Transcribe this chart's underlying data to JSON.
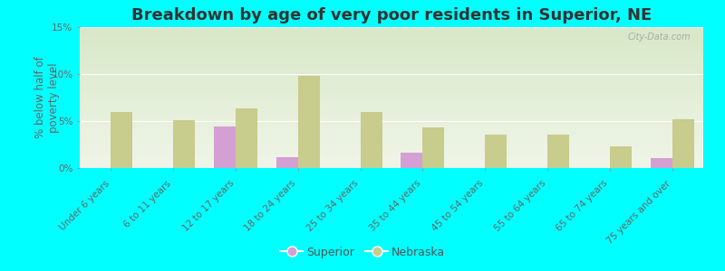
{
  "title": "Breakdown by age of very poor residents in Superior, NE",
  "ylabel": "% below half of\npoverty level",
  "categories": [
    "Under 6 years",
    "6 to 11 years",
    "12 to 17 years",
    "18 to 24 years",
    "25 to 34 years",
    "35 to 44 years",
    "45 to 54 years",
    "55 to 64 years",
    "65 to 74 years",
    "75 years and over"
  ],
  "superior_values": [
    0,
    0,
    4.4,
    1.2,
    0,
    1.6,
    0,
    0,
    0,
    1.1
  ],
  "nebraska_values": [
    6.0,
    5.1,
    6.3,
    9.8,
    6.0,
    4.3,
    3.6,
    3.6,
    2.3,
    5.2
  ],
  "superior_color": "#d4a0d4",
  "nebraska_color": "#c8cc8c",
  "background_color": "#00ffff",
  "grad_top": "#d8e8c8",
  "grad_bottom": "#f0f5e8",
  "ylim": [
    0,
    15
  ],
  "yticks": [
    0,
    5,
    10,
    15
  ],
  "ytick_labels": [
    "0%",
    "5%",
    "10%",
    "15%"
  ],
  "bar_width": 0.35,
  "title_fontsize": 13,
  "axis_label_fontsize": 8.5,
  "tick_fontsize": 7.5,
  "watermark": "City-Data.com",
  "watermark_fontsize": 7
}
